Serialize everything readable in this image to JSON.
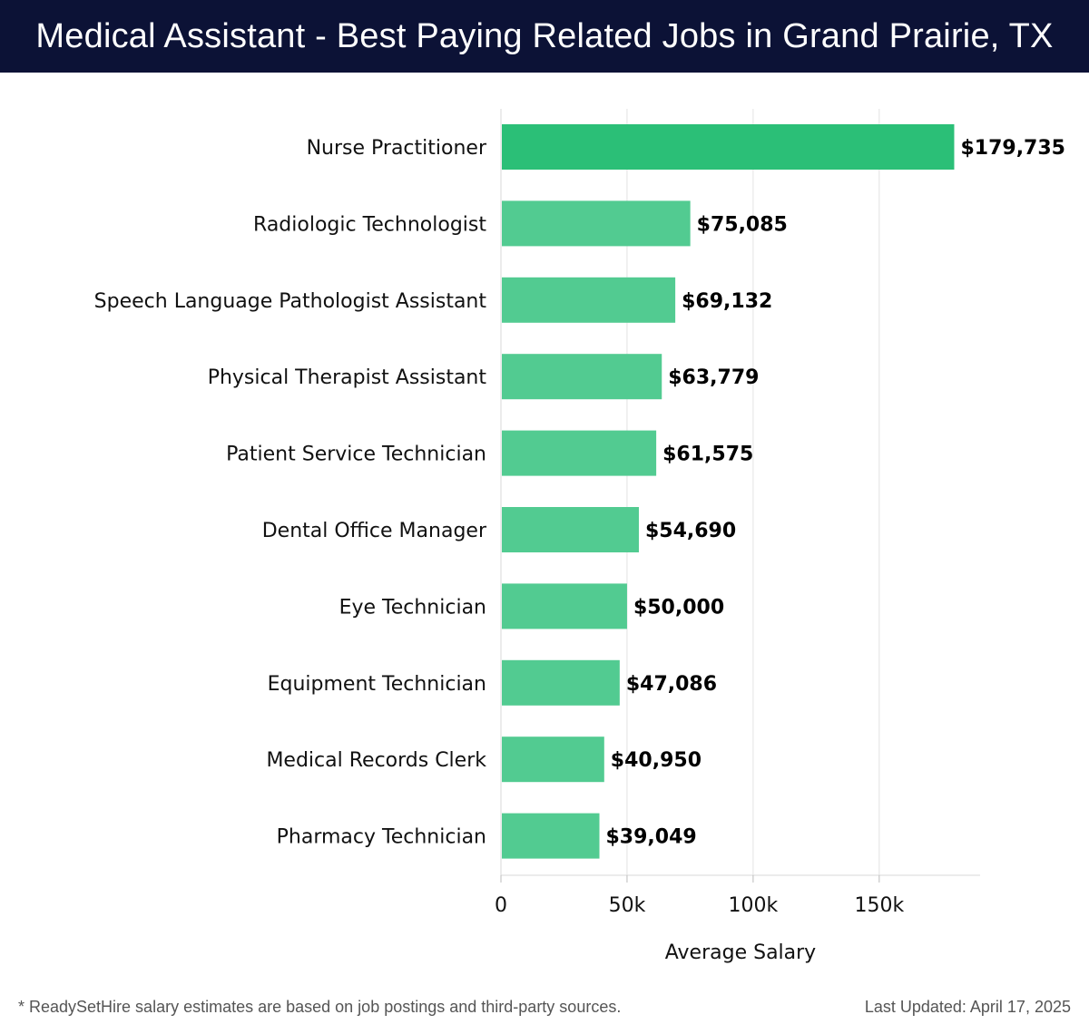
{
  "header": {
    "title": "Medical Assistant - Best Paying Related Jobs in Grand Prairie, TX"
  },
  "footer": {
    "note": "* ReadySetHire salary estimates are based on job postings and third-party sources.",
    "updated": "Last Updated: April 17, 2025"
  },
  "colors": {
    "header_bg": "#0c1236",
    "top_bar": "#2bbf77",
    "bar": "#52cb91"
  },
  "chart_data": {
    "type": "bar",
    "orientation": "horizontal",
    "categories": [
      "Nurse Practitioner",
      "Radiologic Technologist",
      "Speech Language Pathologist Assistant",
      "Physical Therapist Assistant",
      "Patient Service Technician",
      "Dental Office Manager",
      "Eye Technician",
      "Equipment Technician",
      "Medical Records Clerk",
      "Pharmacy Technician"
    ],
    "values": [
      179735,
      75085,
      69132,
      63779,
      61575,
      54690,
      50000,
      47086,
      40950,
      39049
    ],
    "value_labels": [
      "$179,735",
      "$75,085",
      "$69,132",
      "$63,779",
      "$61,575",
      "$54,690",
      "$50,000",
      "$47,086",
      "$40,950",
      "$39,049"
    ],
    "xlabel": "Average Salary",
    "ylabel": "",
    "xlim": [
      0,
      190000
    ],
    "x_ticks": [
      0,
      50000,
      100000,
      150000
    ],
    "x_tick_labels": [
      "0",
      "50k",
      "100k",
      "150k"
    ],
    "grid": "vertical",
    "legend": "none"
  }
}
